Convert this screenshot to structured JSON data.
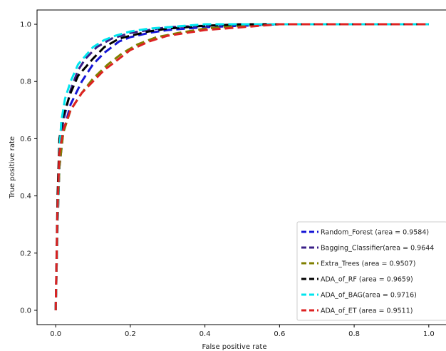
{
  "chart_data": {
    "type": "line",
    "title": "",
    "xlabel": "False positive rate",
    "ylabel": "True positive rate",
    "xlim": [
      -0.05,
      1.05
    ],
    "ylim": [
      -0.05,
      1.05
    ],
    "xticks": [
      0.0,
      0.2,
      0.4,
      0.6,
      0.8,
      1.0
    ],
    "xtick_labels": [
      "0.0",
      "0.2",
      "0.4",
      "0.6",
      "0.8",
      "1.0"
    ],
    "yticks": [
      0.0,
      0.2,
      0.4,
      0.6,
      0.8,
      1.0
    ],
    "ytick_labels": [
      "0.0",
      "0.2",
      "0.4",
      "0.6",
      "0.8",
      "1.0"
    ],
    "grid": false,
    "legend_position": "lower-right",
    "line_style": "dashed",
    "series": [
      {
        "name": "Random_Forest (area = 0.9584)",
        "color": "#1515d6",
        "x": [
          0.0,
          0.005,
          0.01,
          0.02,
          0.04,
          0.07,
          0.1,
          0.13,
          0.17,
          0.2,
          0.25,
          0.3,
          0.4,
          0.5,
          0.6,
          0.8,
          1.0
        ],
        "y": [
          0.0,
          0.3,
          0.5,
          0.62,
          0.72,
          0.8,
          0.86,
          0.9,
          0.94,
          0.955,
          0.97,
          0.98,
          0.99,
          0.995,
          1.0,
          1.0,
          1.0
        ]
      },
      {
        "name": "Bagging_Classifier(area = 0.9644",
        "color": "#3a1f87",
        "x": [
          0.0,
          0.005,
          0.01,
          0.02,
          0.04,
          0.06,
          0.08,
          0.11,
          0.15,
          0.2,
          0.25,
          0.3,
          0.4,
          0.5,
          0.6,
          0.8,
          1.0
        ],
        "y": [
          0.0,
          0.35,
          0.55,
          0.66,
          0.77,
          0.84,
          0.88,
          0.92,
          0.95,
          0.97,
          0.98,
          0.99,
          0.995,
          1.0,
          1.0,
          1.0,
          1.0
        ]
      },
      {
        "name": "Extra_Trees (area = 0.9507)",
        "color": "#808000",
        "x": [
          0.0,
          0.005,
          0.01,
          0.02,
          0.04,
          0.07,
          0.1,
          0.14,
          0.18,
          0.22,
          0.27,
          0.33,
          0.4,
          0.5,
          0.6,
          0.8,
          1.0
        ],
        "y": [
          0.0,
          0.3,
          0.5,
          0.62,
          0.7,
          0.76,
          0.81,
          0.86,
          0.9,
          0.93,
          0.955,
          0.97,
          0.985,
          0.995,
          1.0,
          1.0,
          1.0
        ]
      },
      {
        "name": "ADA_of_RF (area = 0.9659)",
        "color": "#000000",
        "x": [
          0.0,
          0.005,
          0.01,
          0.02,
          0.04,
          0.06,
          0.08,
          0.1,
          0.13,
          0.17,
          0.2,
          0.25,
          0.3,
          0.4,
          0.5,
          0.6,
          0.8,
          1.0
        ],
        "y": [
          0.0,
          0.4,
          0.6,
          0.68,
          0.76,
          0.82,
          0.85,
          0.88,
          0.92,
          0.95,
          0.96,
          0.975,
          0.985,
          0.995,
          1.0,
          1.0,
          1.0,
          1.0
        ]
      },
      {
        "name": "ADA_of_BAG(area = 0.9716)",
        "color": "#00e5ee",
        "x": [
          0.0,
          0.005,
          0.01,
          0.015,
          0.025,
          0.04,
          0.06,
          0.08,
          0.1,
          0.13,
          0.16,
          0.2,
          0.25,
          0.3,
          0.4,
          0.5,
          0.6,
          0.8,
          1.0
        ],
        "y": [
          0.0,
          0.3,
          0.55,
          0.66,
          0.74,
          0.8,
          0.86,
          0.89,
          0.92,
          0.945,
          0.96,
          0.975,
          0.985,
          0.99,
          1.0,
          1.0,
          1.0,
          1.0,
          1.0
        ]
      },
      {
        "name": "ADA_of_ET (area = 0.9511)",
        "color": "#dd2222",
        "x": [
          0.0,
          0.005,
          0.01,
          0.02,
          0.04,
          0.07,
          0.1,
          0.13,
          0.17,
          0.2,
          0.25,
          0.3,
          0.35,
          0.4,
          0.5,
          0.6,
          0.8,
          1.0
        ],
        "y": [
          0.0,
          0.35,
          0.55,
          0.63,
          0.7,
          0.76,
          0.8,
          0.84,
          0.88,
          0.91,
          0.94,
          0.96,
          0.97,
          0.98,
          0.99,
          1.0,
          1.0,
          1.0
        ]
      }
    ]
  }
}
